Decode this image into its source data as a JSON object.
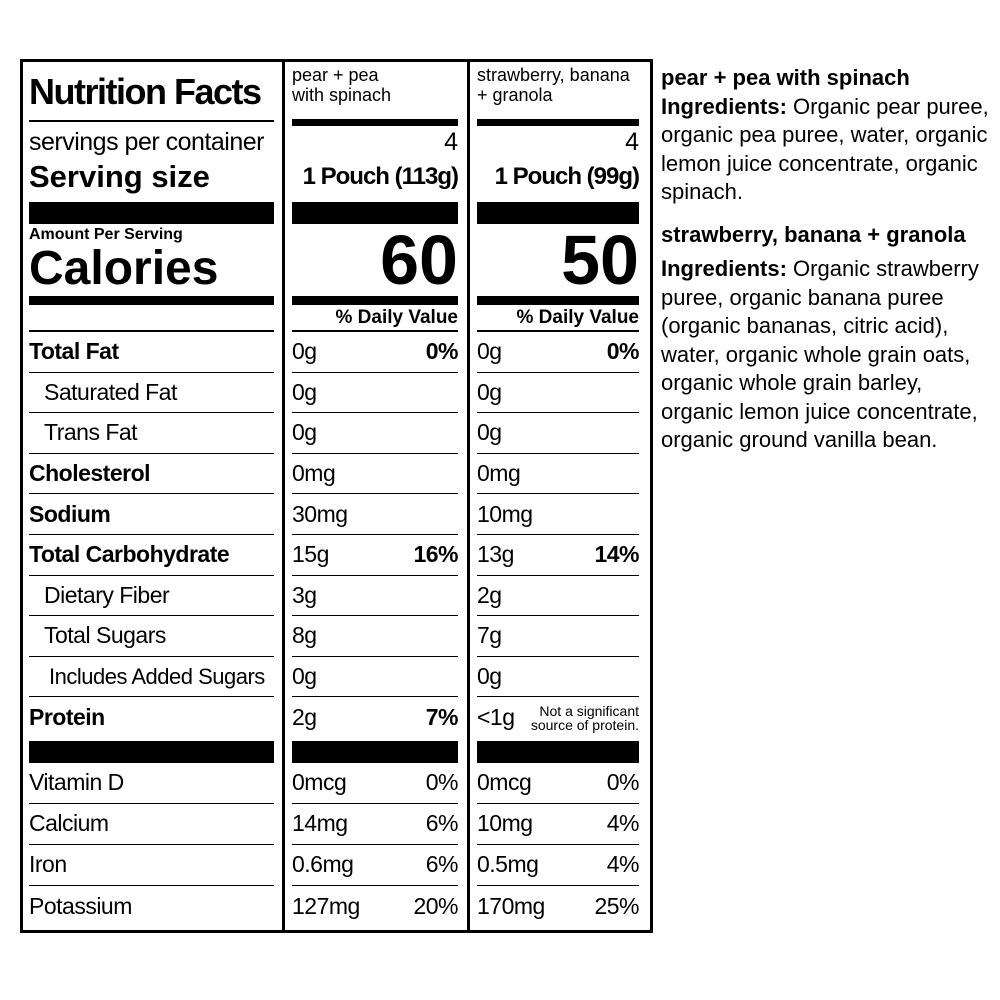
{
  "label": {
    "title": "Nutrition Facts",
    "servings_label": "servings per container",
    "serving_size_label": "Serving size",
    "amount_per_serving": "Amount Per Serving",
    "calories_label": "Calories",
    "daily_value_label": "% Daily Value",
    "nutrients": [
      {
        "name": "Total Fat",
        "bold": true,
        "indent": 0
      },
      {
        "name": "Saturated Fat",
        "bold": false,
        "indent": 1
      },
      {
        "name": "Trans Fat",
        "bold": false,
        "indent": 1
      },
      {
        "name": "Cholesterol",
        "bold": true,
        "indent": 0
      },
      {
        "name": "Sodium",
        "bold": true,
        "indent": 0
      },
      {
        "name": "Total Carbohydrate",
        "bold": true,
        "indent": 0
      },
      {
        "name": "Dietary Fiber",
        "bold": false,
        "indent": 1
      },
      {
        "name": "Total Sugars",
        "bold": false,
        "indent": 1
      },
      {
        "name": "Includes Added Sugars",
        "bold": false,
        "indent": 2
      },
      {
        "name": "Protein",
        "bold": true,
        "indent": 0
      }
    ],
    "vitamins": [
      "Vitamin D",
      "Calcium",
      "Iron",
      "Potassium"
    ]
  },
  "products": [
    {
      "name": "pear + pea with spinach",
      "servings": "4",
      "serving_size": "1 Pouch (113g)",
      "calories": "60",
      "nutrients": [
        {
          "amount": "0g",
          "dv": "0%"
        },
        {
          "amount": "0g",
          "dv": ""
        },
        {
          "amount": "0g",
          "dv": ""
        },
        {
          "amount": "0mg",
          "dv": ""
        },
        {
          "amount": "30mg",
          "dv": ""
        },
        {
          "amount": "15g",
          "dv": "16%"
        },
        {
          "amount": "3g",
          "dv": ""
        },
        {
          "amount": "8g",
          "dv": ""
        },
        {
          "amount": "0g",
          "dv": ""
        },
        {
          "amount": "2g",
          "dv": "7%"
        }
      ],
      "vitamins": [
        {
          "amount": "0mcg",
          "dv": "0%"
        },
        {
          "amount": "14mg",
          "dv": "6%"
        },
        {
          "amount": "0.6mg",
          "dv": "6%"
        },
        {
          "amount": "127mg",
          "dv": "20%"
        }
      ]
    },
    {
      "name": "strawberry, banana + granola",
      "servings": "4",
      "serving_size": "1 Pouch (99g)",
      "calories": "50",
      "nutrients": [
        {
          "amount": "0g",
          "dv": "0%"
        },
        {
          "amount": "0g",
          "dv": ""
        },
        {
          "amount": "0g",
          "dv": ""
        },
        {
          "amount": "0mg",
          "dv": ""
        },
        {
          "amount": "10mg",
          "dv": ""
        },
        {
          "amount": "13g",
          "dv": "14%"
        },
        {
          "amount": "2g",
          "dv": ""
        },
        {
          "amount": "7g",
          "dv": ""
        },
        {
          "amount": "0g",
          "dv": ""
        },
        {
          "amount": "<1g",
          "dv": "",
          "note": "Not a significant source of protein."
        }
      ],
      "vitamins": [
        {
          "amount": "0mcg",
          "dv": "0%"
        },
        {
          "amount": "10mg",
          "dv": "4%"
        },
        {
          "amount": "0.5mg",
          "dv": "4%"
        },
        {
          "amount": "170mg",
          "dv": "25%"
        }
      ]
    }
  ],
  "ingredients": [
    {
      "product": "pear + pea with spinach",
      "label": "Ingredients:",
      "text": "Organic pear puree, organic pea puree, water, organic lemon juice concentrate, organic spinach."
    },
    {
      "product": "strawberry, banana + granola",
      "label": "Ingredients:",
      "text": "Organic strawberry puree, organic banana puree (organic bananas, citric acid), water, organic whole grain oats, organic whole grain barley, organic lemon juice concentrate, organic ground vanilla bean."
    }
  ]
}
